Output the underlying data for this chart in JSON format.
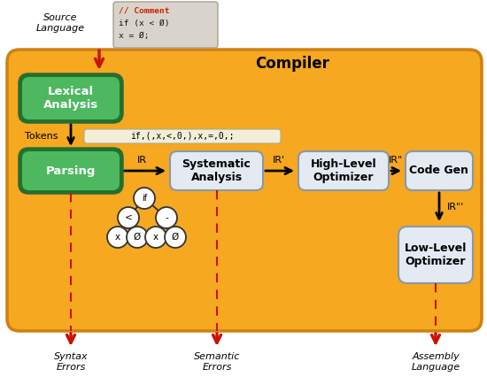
{
  "title": "Compiler",
  "bg_color": "#F5A820",
  "bg_outer": "#FFFFFF",
  "green_top": "#4DB860",
  "green_bot": "#1A7A28",
  "green_edge": "#2A6B30",
  "white_box_color": "#E4EAF2",
  "white_box_edge": "#8898AA",
  "source_code_bg": "#D8D4CC",
  "source_code_red": "#CC2200",
  "token_box_bg": "#F2EED8",
  "token_box_edge": "#B0A888",
  "red_arrow_color": "#CC1100",
  "dashed_red": "#CC1100",
  "source_label": "Source\nLanguage",
  "tokens_label": "if,(,x,<,0,),x,=,0,;",
  "lexical_label": "Lexical\nAnalysis",
  "parsing_label": "Parsing",
  "systematic_label": "Systematic\nAnalysis",
  "highlevel_label": "High-Level\nOptimizer",
  "codegen_label": "Code Gen",
  "lowlevel_label": "Low-Level\nOptimizer",
  "syntax_label": "Syntax\nErrors",
  "semantic_label": "Semantic\nErrors",
  "assembly_label": "Assembly\nLanguage",
  "ir_label": "IR",
  "irp_label": "IR'",
  "irpp_label": "IR\"",
  "irppp_label": "IR\"'",
  "comment_line1": "// Comment",
  "comment_line2": "if (x < Ø)",
  "comment_line3": "x = Ø;",
  "fig_w": 5.5,
  "fig_h": 4.26,
  "dpi": 100
}
